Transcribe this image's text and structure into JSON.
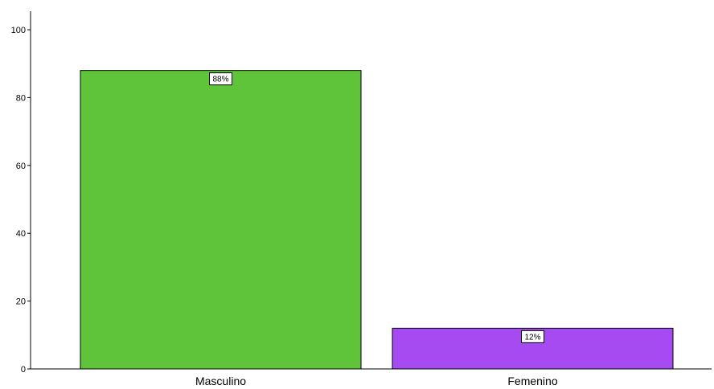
{
  "chart_data": {
    "type": "bar",
    "categories": [
      "Masculino",
      "Femenino"
    ],
    "values": [
      88,
      12
    ],
    "data_labels": [
      "88%",
      "12%"
    ],
    "colors": [
      "#5fc43a",
      "#a64bf2"
    ],
    "yticks": [
      0,
      20,
      40,
      60,
      80,
      100
    ],
    "ylim": [
      0,
      105
    ],
    "grid": false,
    "legend": "none"
  }
}
